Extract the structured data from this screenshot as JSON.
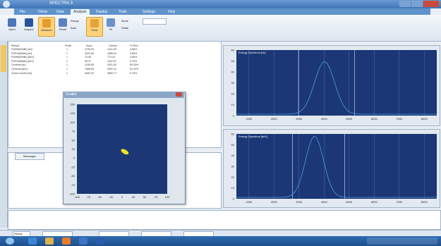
{
  "app": {
    "title": "SPECTRA 3"
  },
  "ribbon": {
    "tabs": [
      "File",
      "Home",
      "Data",
      "Analysis",
      "Display",
      "Tools",
      "Settings",
      "Help"
    ],
    "active_tab_index": 3,
    "buttons": [
      {
        "label": "Open",
        "icon": "folder-icon",
        "color": "#4b76b8"
      },
      {
        "label": "Acquire",
        "icon": "acquire-icon",
        "color": "#2a5598"
      },
      {
        "label": "Measure",
        "icon": "measure-icon",
        "color": "#e89b2c",
        "active": true
      },
      {
        "label": "Reset",
        "icon": "refresh-icon",
        "color": "#5a82c0"
      },
      {
        "label": "Peak",
        "icon": "peak-icon",
        "color": "#e6a33a",
        "active": true
      },
      {
        "label": "Fit",
        "icon": "fit-icon",
        "color": "#6b92c9"
      }
    ],
    "small_labels": [
      "Range",
      "Auto",
      "Mode",
      "Scale"
    ]
  },
  "results_table": {
    "headers": [
      "Result",
      "Peak",
      "Area",
      "Center",
      "% Res"
    ],
    "rows": [
      [
        "FWHM(Width) [ch]",
        "1",
        "3705.40",
        "1421.50",
        "4.88%"
      ],
      [
        "FWTM(Width) [ch]",
        "1",
        "4022.80",
        "1985.20",
        "4.83%"
      ],
      [
        "FWHM(Width) [keV]",
        "1",
        "73.55",
        "774.20",
        "4.89%"
      ],
      [
        "FWTM(Width) [keV]",
        "1",
        "55.27",
        "1032.57",
        "4.75%"
      ],
      [
        "Centroid [ch]",
        "1",
        "1248.83",
        "2001.63",
        "60.43%"
      ],
      [
        "Centroid [keV]",
        "1",
        "1368.95",
        "2002.12",
        "61.32%"
      ],
      [
        "Gross Counts [ch]",
        "1",
        "4832.43",
        "3800.77",
        "5.15%"
      ]
    ]
  },
  "lower_panel": {
    "tab_label": "Messages"
  },
  "floating_window": {
    "title": "Scatter",
    "y_ticks": [
      "150",
      "125",
      "100",
      "75",
      "50",
      "25",
      "0",
      "-25",
      "-50",
      "-75",
      "-100"
    ],
    "x_ticks": [
      "-100",
      "-75",
      "-50",
      "-25",
      "0",
      "25",
      "50",
      "75",
      "100"
    ],
    "blob_color": "#f0e21a"
  },
  "charts": {
    "top": {
      "title": "Energy Spectrum [ch]",
      "x_ticks": [
        "1000",
        "2000",
        "3000",
        "4000",
        "5000",
        "6000",
        "7000",
        "8000"
      ],
      "y_ticks": [
        "60",
        "50",
        "40",
        "30",
        "20",
        "10",
        "0"
      ]
    },
    "bottom": {
      "title": "Energy Spectrum [keV]",
      "x_ticks": [
        "1000",
        "2000",
        "3000",
        "4000",
        "5000",
        "6000",
        "7000",
        "8000"
      ],
      "y_ticks": [
        "60",
        "50",
        "40",
        "30",
        "20",
        "10",
        "0"
      ]
    },
    "colors": {
      "plot_bg": "#1b3775",
      "grid": "#6f8fc8",
      "curve": "#4f9ee8",
      "marker": "#d9e6ff"
    }
  },
  "statusbar": {
    "fields": [
      "Ready",
      "",
      "",
      "",
      ""
    ]
  },
  "taskbar": {
    "start_icon": "windows-start-icon",
    "apps": [
      {
        "icon": "ie-icon",
        "color": "#3a86d6"
      },
      {
        "icon": "folder-icon",
        "color": "#e0b24a"
      },
      {
        "icon": "media-icon",
        "color": "#e97b2c"
      },
      {
        "icon": "app-icon",
        "color": "#3d74c4"
      },
      {
        "icon": "spectra-icon",
        "color": "#2b5aa8"
      }
    ],
    "tray_time": ""
  }
}
